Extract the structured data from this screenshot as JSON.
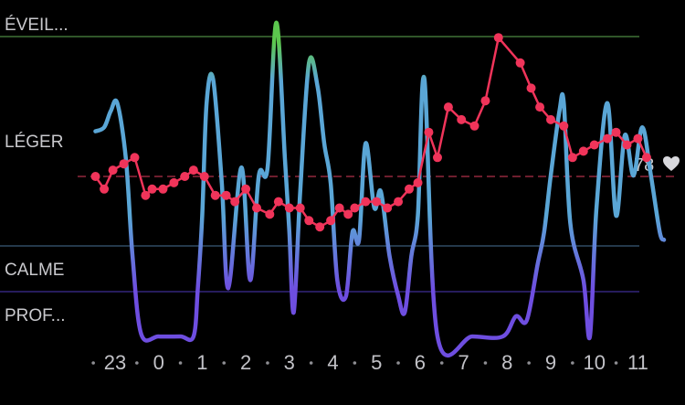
{
  "chart_data": {
    "type": "line",
    "stages": [
      "ÉVEIL...",
      "LÉGER",
      "CALME",
      "PROF..."
    ],
    "stage_colors": {
      "awake": "#5cc64e",
      "light": "#5aa6d6",
      "deep": "#6e4ee0",
      "heart_rate": "#f0345a"
    },
    "x_ticks": [
      "23",
      "0",
      "1",
      "2",
      "3",
      "4",
      "5",
      "6",
      "7",
      "8",
      "9",
      "10",
      "11"
    ],
    "x_range": [
      22.7,
      11.5
    ],
    "series": [
      {
        "kind": "sleep_stage",
        "x": [
          22.55,
          22.75,
          22.9,
          23.05,
          23.25,
          23.4,
          23.6,
          0.0,
          0.5,
          0.8,
          0.9,
          1.0,
          1.1,
          1.25,
          1.45,
          1.6,
          1.9,
          2.1,
          2.3,
          2.5,
          2.7,
          2.9,
          3.0,
          3.1,
          3.25,
          3.45,
          3.65,
          3.8,
          3.95,
          4.1,
          4.3,
          4.45,
          4.6,
          4.75,
          4.95,
          5.1,
          5.3,
          5.5,
          5.65,
          5.8,
          5.95,
          6.1,
          6.4,
          7.2,
          7.9,
          8.2,
          8.45,
          8.7,
          8.85,
          9.0,
          9.2,
          9.3,
          9.45,
          9.75,
          9.9,
          10.05,
          10.3,
          10.5,
          10.7,
          10.9,
          11.1,
          11.3,
          11.5,
          11.6
        ],
        "stage_level": [
          2.55,
          2.6,
          2.8,
          2.9,
          2.2,
          1.0,
          0.03,
          0.0,
          0.0,
          0.0,
          0.6,
          1.5,
          2.9,
          3.2,
          1.9,
          0.6,
          2.1,
          0.7,
          2.0,
          2.1,
          3.9,
          2.2,
          1.3,
          0.3,
          1.8,
          3.4,
          3.1,
          2.4,
          1.9,
          0.7,
          0.5,
          1.3,
          1.2,
          2.4,
          1.6,
          1.8,
          1.0,
          0.5,
          0.3,
          1.0,
          1.5,
          3.2,
          0.0,
          0.0,
          0.0,
          0.25,
          0.2,
          0.9,
          1.3,
          2.0,
          2.8,
          2.9,
          1.4,
          0.7,
          0.0,
          1.6,
          2.9,
          1.5,
          2.5,
          2.0,
          2.6,
          2.0,
          1.3,
          1.2
        ]
      },
      {
        "kind": "heart_rate",
        "x": [
          22.55,
          22.75,
          22.95,
          23.2,
          23.45,
          23.7,
          23.85,
          0.1,
          0.35,
          0.6,
          0.8,
          1.05,
          1.3,
          1.55,
          1.75,
          2.0,
          2.25,
          2.55,
          2.75,
          3.0,
          3.25,
          3.45,
          3.7,
          3.95,
          4.15,
          4.35,
          4.5,
          4.75,
          5.0,
          5.25,
          5.5,
          5.75,
          5.95,
          6.2,
          6.4,
          6.65,
          6.95,
          7.25,
          7.5,
          7.8,
          8.3,
          8.55,
          8.75,
          9.0,
          9.3,
          9.5,
          9.75,
          10.0,
          10.3,
          10.5,
          10.75,
          11.0,
          11.2
        ],
        "bpm": [
          78,
          76,
          79,
          80,
          81,
          75,
          76,
          76,
          77,
          78,
          79,
          78,
          75,
          75,
          74,
          76,
          73,
          72,
          74,
          73,
          73,
          71,
          70,
          71,
          73,
          72,
          73,
          74,
          74,
          73,
          74,
          76,
          77,
          85,
          81,
          89,
          87,
          86,
          90,
          100,
          96,
          92,
          89,
          87,
          86,
          81,
          82,
          83,
          84,
          85,
          83,
          84,
          81
        ]
      }
    ],
    "reference_line": {
      "value": 78,
      "label": "78",
      "style": "dashed"
    }
  }
}
